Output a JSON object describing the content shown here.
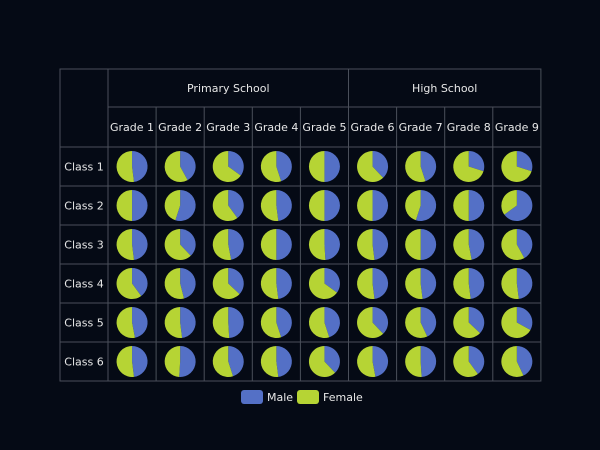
{
  "colors": {
    "male": "#5470c6",
    "female": "#b6d434",
    "background": "#050a15",
    "grid": "#4a4f5a"
  },
  "chart_data": {
    "type": "pie",
    "layout": "matrix",
    "title": "",
    "groups": [
      {
        "name": "Primary School",
        "span": 5
      },
      {
        "name": "High School",
        "span": 4
      }
    ],
    "columns": [
      "Grade 1",
      "Grade 2",
      "Grade 3",
      "Grade 4",
      "Grade 5",
      "Grade 6",
      "Grade 7",
      "Grade 8",
      "Grade 9"
    ],
    "rows": [
      "Class 1",
      "Class 2",
      "Class 3",
      "Class 4",
      "Class 5",
      "Class 6"
    ],
    "series": [
      "Male",
      "Female"
    ],
    "male_share": [
      [
        0.48,
        0.42,
        0.35,
        0.45,
        0.5,
        0.38,
        0.45,
        0.3,
        0.3
      ],
      [
        0.5,
        0.55,
        0.4,
        0.48,
        0.5,
        0.5,
        0.55,
        0.5,
        0.65
      ],
      [
        0.48,
        0.38,
        0.47,
        0.5,
        0.49,
        0.48,
        0.5,
        0.47,
        0.42
      ],
      [
        0.4,
        0.46,
        0.37,
        0.48,
        0.35,
        0.48,
        0.48,
        0.48,
        0.48
      ],
      [
        0.47,
        0.48,
        0.49,
        0.45,
        0.45,
        0.38,
        0.43,
        0.37,
        0.33
      ],
      [
        0.48,
        0.51,
        0.45,
        0.48,
        0.38,
        0.47,
        0.49,
        0.4,
        0.43
      ]
    ],
    "legend": {
      "position": "bottom",
      "items": [
        "Male",
        "Female"
      ]
    }
  }
}
